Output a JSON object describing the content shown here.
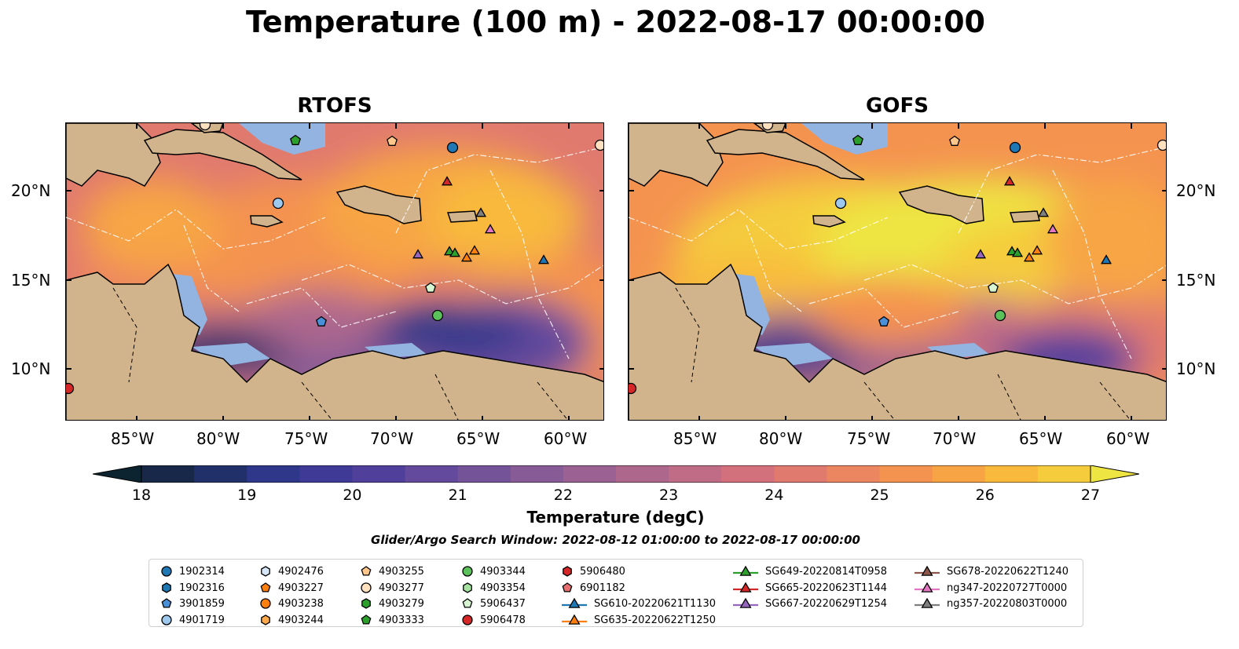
{
  "title": "Temperature (100 m) - 2022-08-17 00:00:00",
  "panels": [
    {
      "title": "RTOFS",
      "variant": "rtofs"
    },
    {
      "title": "GOFS",
      "variant": "gofs"
    }
  ],
  "lat_ticks": [
    "20°N",
    "15°N",
    "10°N"
  ],
  "lon_ticks": [
    "85°W",
    "80°W",
    "75°W",
    "70°W",
    "65°W",
    "60°W"
  ],
  "colorbar": {
    "label": "Temperature (degC)",
    "ticks": [
      "18",
      "19",
      "20",
      "21",
      "22",
      "23",
      "24",
      "25",
      "26",
      "27"
    ],
    "min": 18,
    "max": 27,
    "step": 0.5,
    "colors": [
      "#0c2430",
      "#172848",
      "#22306a",
      "#2e378a",
      "#3e3a96",
      "#51409b",
      "#634a9c",
      "#745399",
      "#875b96",
      "#9b6192",
      "#ad678d",
      "#c06c86",
      "#d2717c",
      "#e07a6f",
      "#ec8660",
      "#f49350",
      "#f7a544",
      "#f8b93d",
      "#f5cc3c",
      "#eee543"
    ],
    "extend": "both"
  },
  "search_window": "Glider/Argo Search Window: 2022-08-12 01:00:00 to 2022-08-17 00:00:00",
  "legend": [
    {
      "label": "1902314",
      "shape": "circle",
      "color": "#1f77b4"
    },
    {
      "label": "1902316",
      "shape": "hexagon",
      "color": "#1f77b4"
    },
    {
      "label": "3901859",
      "shape": "pentagon",
      "color": "#4a90d9"
    },
    {
      "label": "4901719",
      "shape": "circle",
      "color": "#9ec9ee"
    },
    {
      "label": "4902476",
      "shape": "hexagon",
      "color": "#d6e8f8"
    },
    {
      "label": "4903227",
      "shape": "pentagon",
      "color": "#ff7f0e"
    },
    {
      "label": "4903238",
      "shape": "circle",
      "color": "#ff7f0e"
    },
    {
      "label": "4903244",
      "shape": "hexagon",
      "color": "#ffa94d"
    },
    {
      "label": "4903255",
      "shape": "pentagon",
      "color": "#ffc78a"
    },
    {
      "label": "4903277",
      "shape": "circle",
      "color": "#ffe0bf"
    },
    {
      "label": "4903279",
      "shape": "hexagon",
      "color": "#2ca02c"
    },
    {
      "label": "4903333",
      "shape": "pentagon",
      "color": "#2ca02c"
    },
    {
      "label": "4903344",
      "shape": "circle",
      "color": "#5bc15b"
    },
    {
      "label": "4903354",
      "shape": "hexagon",
      "color": "#a6e3a1"
    },
    {
      "label": "5906437",
      "shape": "pentagon",
      "color": "#d6f5d0"
    },
    {
      "label": "5906478",
      "shape": "circle",
      "color": "#d62728"
    },
    {
      "label": "5906480",
      "shape": "hexagon",
      "color": "#d62728"
    },
    {
      "label": "6901182",
      "shape": "pentagon",
      "color": "#e76f6f"
    },
    {
      "label": "SG610-20220621T1130",
      "shape": "triangle-line",
      "color": "#1f77b4"
    },
    {
      "label": "SG635-20220622T1250",
      "shape": "triangle-line",
      "color": "#ff7f0e"
    },
    {
      "label": "SG649-20220814T0958",
      "shape": "triangle-line",
      "color": "#2ca02c"
    },
    {
      "label": "SG665-20220623T1144",
      "shape": "triangle-line",
      "color": "#d62728"
    },
    {
      "label": "SG667-20220629T1254",
      "shape": "triangle-line",
      "color": "#9467bd"
    },
    {
      "label": "SG678-20220622T1240",
      "shape": "triangle-line",
      "color": "#8c564b"
    },
    {
      "label": "ng347-20220727T0000",
      "shape": "triangle-line",
      "color": "#e377c2"
    },
    {
      "label": "ng357-20220803T0000",
      "shape": "triangle-line",
      "color": "#7f7f7f"
    }
  ],
  "colors": {
    "land": "#d2b48c",
    "shallow": "#93b4e0",
    "deep": "#0c2430"
  }
}
